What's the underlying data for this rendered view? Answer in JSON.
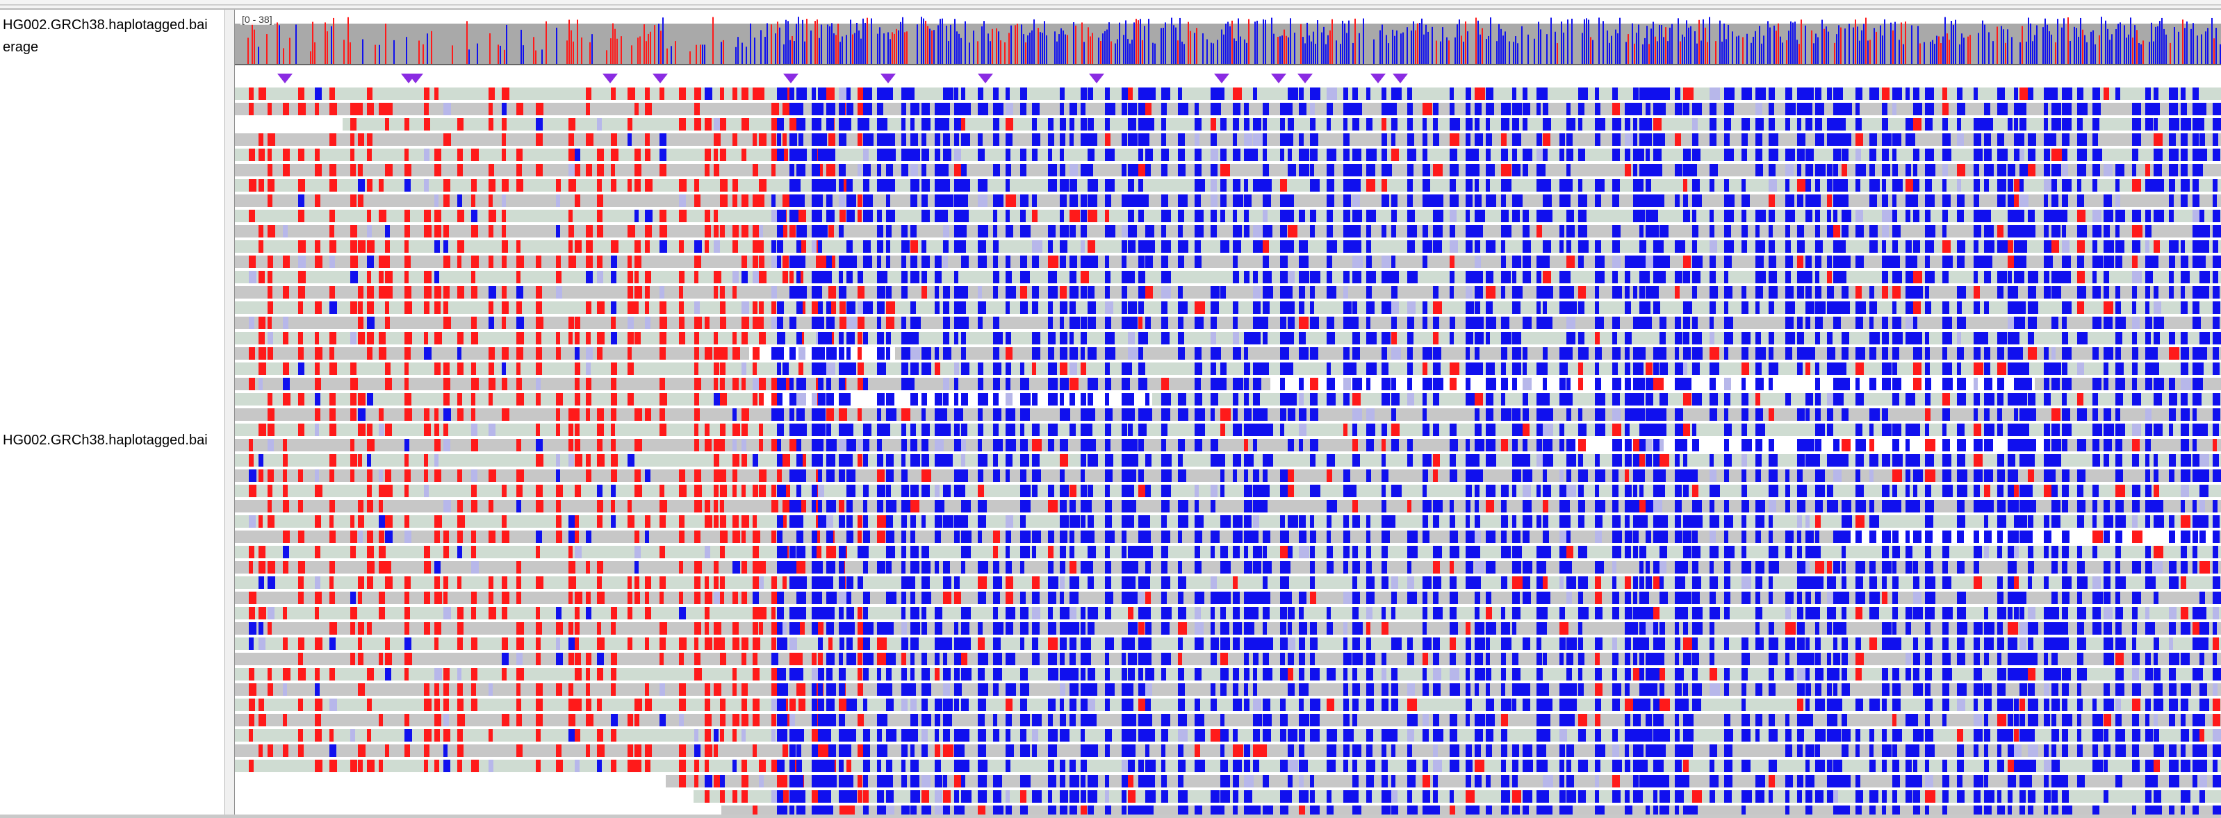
{
  "tracks": {
    "coverage_name_line1": "HG002.GRCh38.haplotagged.bai",
    "coverage_name_line2": "erage",
    "alignment_name": "HG002.GRCh38.haplotagged.bai"
  },
  "coverage": {
    "data_range": "[0 - 38]"
  },
  "colors": {
    "read_base": "#c7c7c7",
    "read_haplotype_tint": "#cfdcd2",
    "mismatch_red": "#ff1a1a",
    "mismatch_blue": "#1010ee",
    "mismatch_light": "#b7b7ea",
    "insertion": "#8a2be2",
    "coverage_gray": "#a9a9a9"
  },
  "icons": {
    "insertion_marker": "insertion-triangle-icon"
  }
}
